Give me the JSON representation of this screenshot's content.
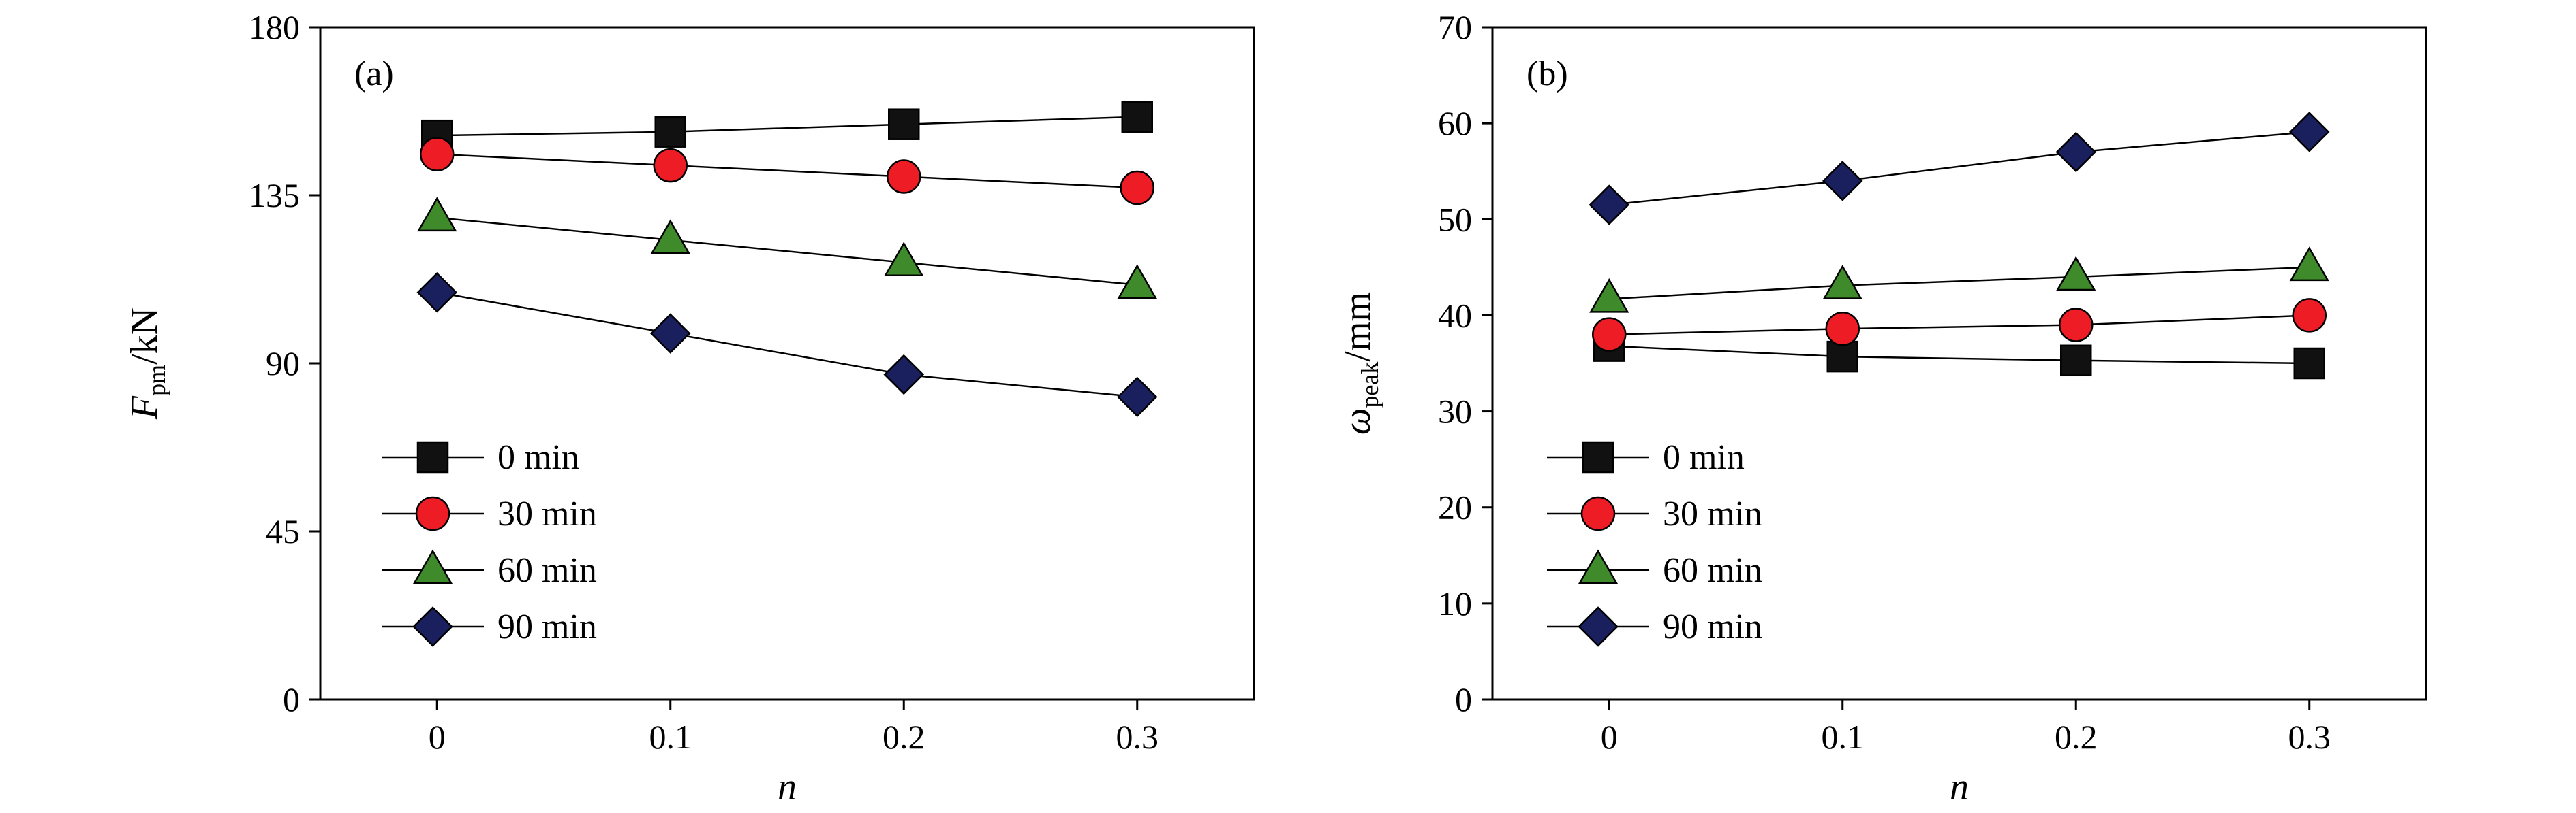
{
  "chart_data": [
    {
      "type": "line",
      "panel_label": "(a)",
      "xlabel": "n",
      "ylabel_main": "F",
      "ylabel_sub": "pm",
      "ylabel_unit": "/kN",
      "x": [
        0,
        0.1,
        0.2,
        0.3
      ],
      "x_tick_labels": [
        "0",
        "0.1",
        "0.2",
        "0.3"
      ],
      "xlim": [
        -0.05,
        0.35
      ],
      "ylim": [
        0,
        180
      ],
      "y_ticks": [
        0,
        45,
        90,
        135,
        180
      ],
      "y_tick_labels": [
        "0",
        "45",
        "90",
        "135",
        "180"
      ],
      "legend_position": "lower-left",
      "grid": false,
      "series": [
        {
          "name": "0 min",
          "marker": "square",
          "color": "#111111",
          "values": [
            151,
            152,
            154,
            156
          ]
        },
        {
          "name": "30 min",
          "marker": "circle",
          "color": "#ee1c24",
          "values": [
            146,
            143,
            140,
            137
          ]
        },
        {
          "name": "60 min",
          "marker": "triangle",
          "color": "#3f8a2a",
          "values": [
            129,
            123,
            117,
            111
          ]
        },
        {
          "name": "90 min",
          "marker": "diamond",
          "color": "#1a1f5e",
          "values": [
            109,
            98,
            87,
            81
          ]
        }
      ]
    },
    {
      "type": "line",
      "panel_label": "(b)",
      "xlabel": "n",
      "ylabel_main": "ω",
      "ylabel_sub": "peak",
      "ylabel_unit": "/mm",
      "x": [
        0,
        0.1,
        0.2,
        0.3
      ],
      "x_tick_labels": [
        "0",
        "0.1",
        "0.2",
        "0.3"
      ],
      "xlim": [
        -0.05,
        0.35
      ],
      "ylim": [
        0,
        70
      ],
      "y_ticks": [
        0,
        10,
        20,
        30,
        40,
        50,
        60,
        70
      ],
      "y_tick_labels": [
        "0",
        "10",
        "20",
        "30",
        "40",
        "50",
        "60",
        "70"
      ],
      "legend_position": "lower-left",
      "grid": false,
      "series": [
        {
          "name": "0 min",
          "marker": "square",
          "color": "#111111",
          "values": [
            36.8,
            35.7,
            35.3,
            35.0
          ]
        },
        {
          "name": "30 min",
          "marker": "circle",
          "color": "#ee1c24",
          "values": [
            38.0,
            38.6,
            39.0,
            40.0
          ]
        },
        {
          "name": "60 min",
          "marker": "triangle",
          "color": "#3f8a2a",
          "values": [
            41.7,
            43.1,
            44.0,
            45.0
          ]
        },
        {
          "name": "90 min",
          "marker": "diamond",
          "color": "#1a1f5e",
          "values": [
            51.5,
            54.0,
            57.0,
            59.1
          ]
        }
      ]
    }
  ]
}
